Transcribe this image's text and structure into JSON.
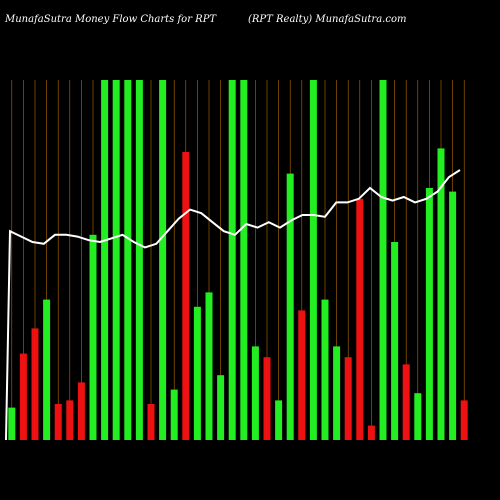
{
  "header": {
    "left": "MunafaSutra  Money Flow  Charts for RPT",
    "right": "(RPT Realty) MunafaSutra.com"
  },
  "colors": {
    "background": "#000000",
    "up": "#22ee22",
    "down": "#ee1111",
    "gridline": "#b36b00",
    "line": "#ffffff"
  },
  "chart_data": {
    "type": "bar",
    "title": "MunafaSutra  Money Flow  Charts for RPT",
    "subtitle": "(RPT Realty) MunafaSutra.com",
    "ylim": [
      0,
      100
    ],
    "values": [
      9,
      24,
      31,
      39,
      10,
      11,
      16,
      57,
      100,
      100,
      100,
      100,
      10,
      100,
      14,
      80,
      37,
      41,
      18,
      100,
      100,
      26,
      23,
      11,
      74,
      36,
      100,
      39,
      26,
      23,
      67,
      4,
      100,
      55,
      21,
      13,
      70,
      81,
      69,
      11
    ],
    "directions": [
      "up",
      "down",
      "down",
      "up",
      "down",
      "down",
      "down",
      "up",
      "up",
      "up",
      "up",
      "up",
      "down",
      "up",
      "up",
      "down",
      "up",
      "up",
      "up",
      "up",
      "up",
      "up",
      "down",
      "up",
      "up",
      "down",
      "up",
      "up",
      "up",
      "down",
      "down",
      "down",
      "up",
      "up",
      "down",
      "up",
      "up",
      "up",
      "up",
      "down"
    ],
    "series": [
      {
        "type": "line",
        "values": [
          58,
          56.5,
          55,
          54.5,
          57,
          57,
          56.5,
          55.5,
          55,
          56,
          57,
          55,
          53.5,
          54.5,
          58,
          61.5,
          64,
          63,
          60.5,
          58,
          57,
          60,
          59,
          60.5,
          59,
          61,
          62.5,
          62.5,
          62,
          66,
          66,
          67,
          70,
          67.5,
          66.5,
          67.5,
          66,
          67,
          69,
          73,
          75
        ]
      }
    ]
  }
}
